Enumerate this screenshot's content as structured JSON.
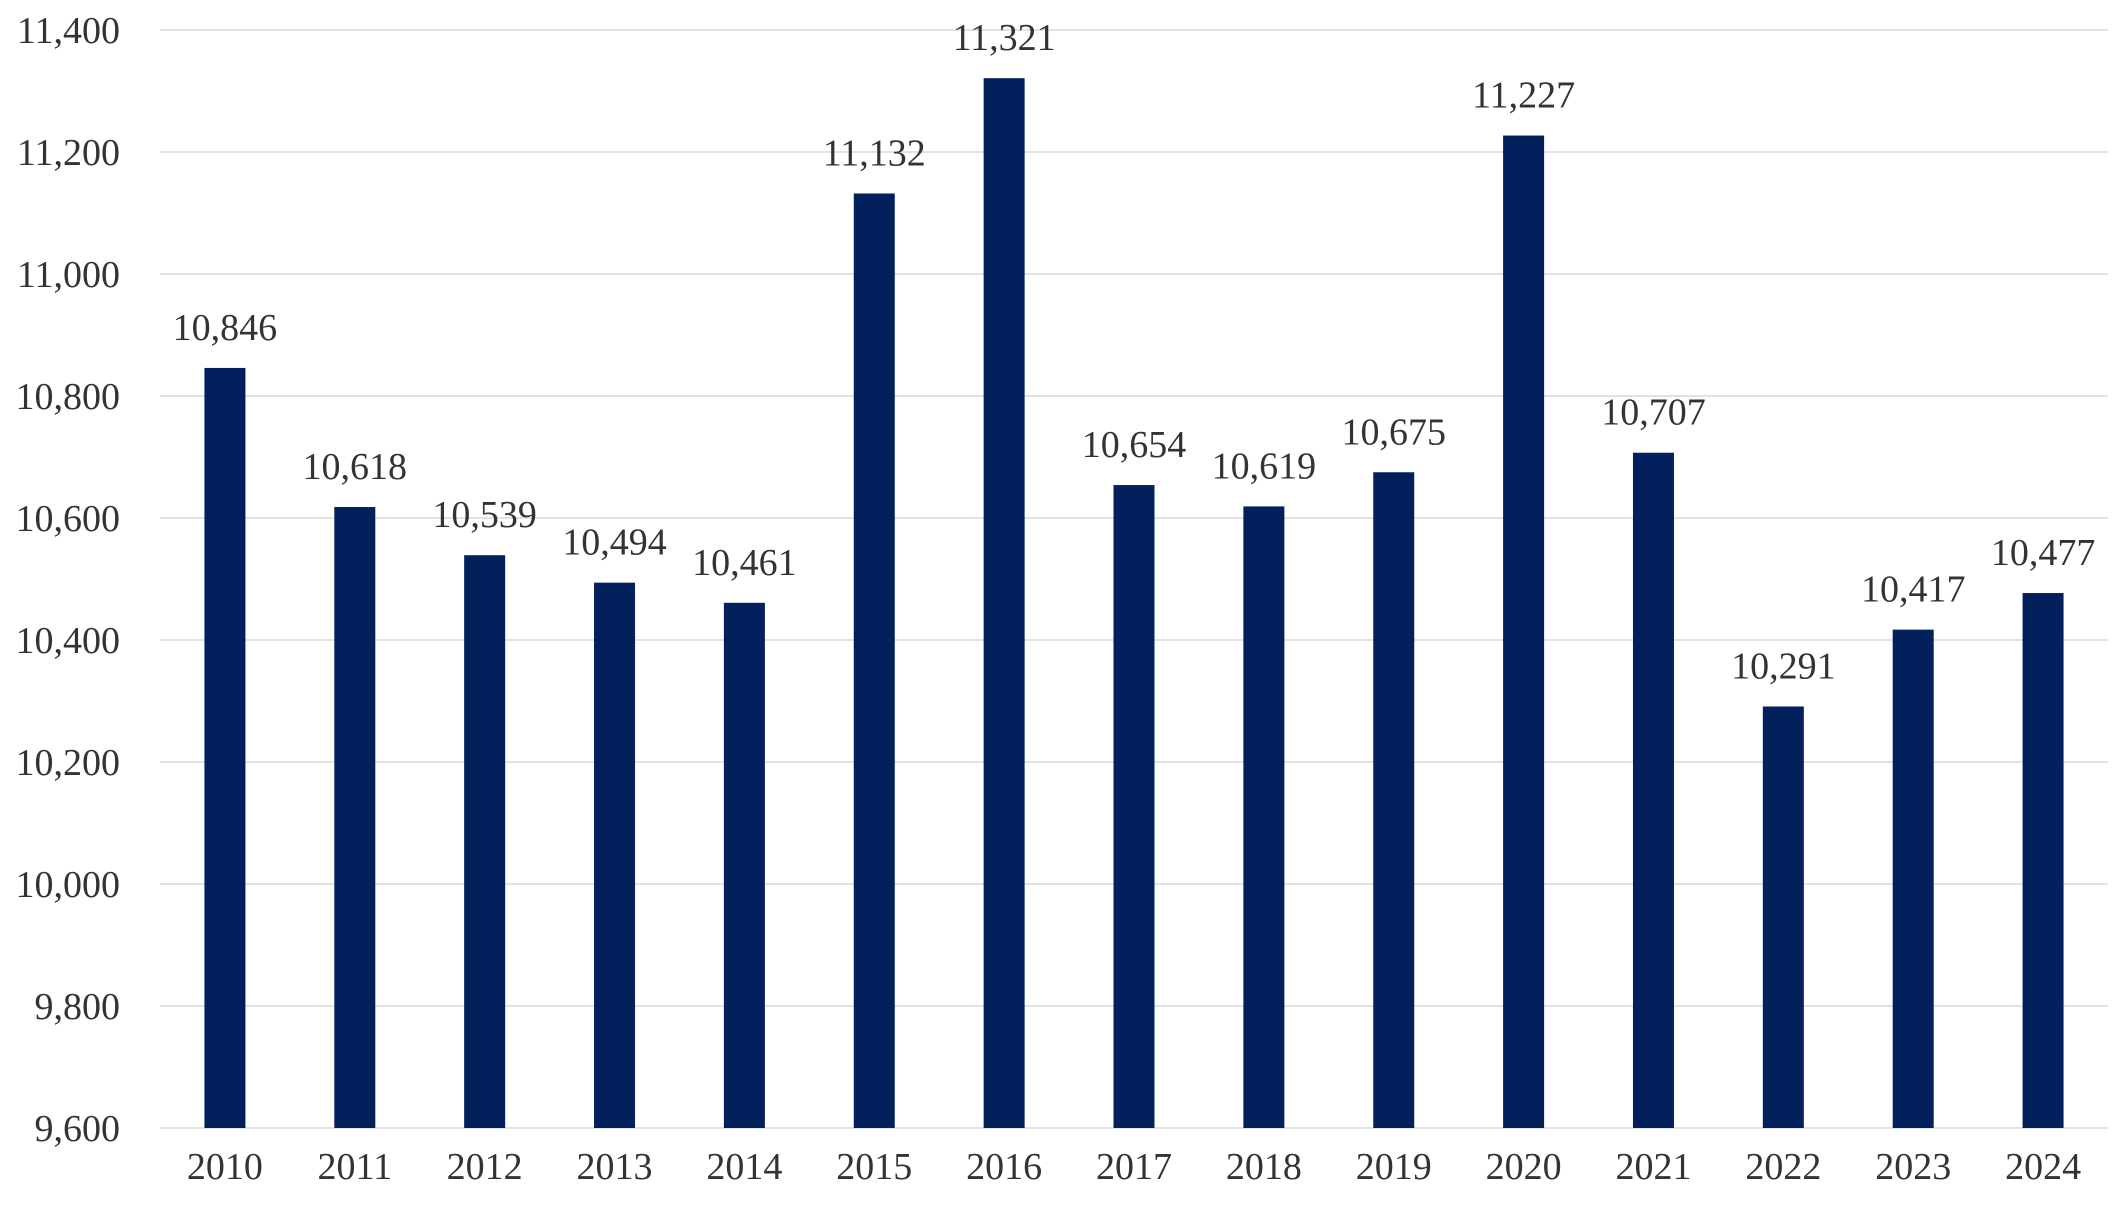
{
  "chart_data": {
    "type": "bar",
    "title": "",
    "xlabel": "",
    "ylabel": "",
    "categories": [
      "2010",
      "2011",
      "2012",
      "2013",
      "2014",
      "2015",
      "2016",
      "2017",
      "2018",
      "2019",
      "2020",
      "2021",
      "2022",
      "2023",
      "2024"
    ],
    "values": [
      10846,
      10618,
      10539,
      10494,
      10461,
      11132,
      11321,
      10654,
      10619,
      10675,
      11227,
      10707,
      10291,
      10417,
      10477
    ],
    "data_labels": [
      "10,846",
      "10,618",
      "10,539",
      "10,494",
      "10,461",
      "11,132",
      "11,321",
      "10,654",
      "10,619",
      "10,675",
      "11,227",
      "10,707",
      "10,291",
      "10,417",
      "10,477"
    ],
    "ylim": [
      9600,
      11400
    ],
    "y_ticks": [
      9600,
      9800,
      10000,
      10200,
      10400,
      10600,
      10800,
      11000,
      11200,
      11400
    ],
    "y_tick_labels": [
      "9,600",
      "9,800",
      "10,000",
      "10,200",
      "10,400",
      "10,600",
      "10,800",
      "11,000",
      "11,200",
      "11,400"
    ],
    "grid": true,
    "legend": "none",
    "colors": {
      "bar": "#02205c",
      "grid": "#d9d9d9",
      "text": "#333333"
    }
  }
}
